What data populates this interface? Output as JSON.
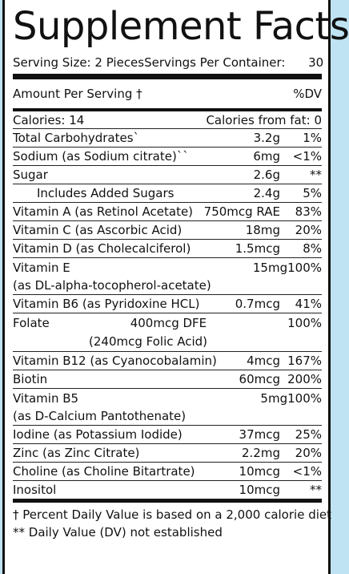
{
  "title": "Supplement Facts",
  "serving": {
    "size_label": "Serving Size:",
    "size_value": "2 Pieces",
    "per_container_label": "Servings Per Container:",
    "per_container_value": "30"
  },
  "header": {
    "amount": "Amount Per Serving †",
    "dv": "%DV"
  },
  "calories": {
    "label": "Calories: 14",
    "fat": "Calories from fat: 0"
  },
  "nutrients": [
    {
      "name": "Total Carbohydrates`",
      "amount": "3.2g",
      "dv": "1%"
    },
    {
      "name": "Sodium (as Sodium citrate)``",
      "amount": "6mg",
      "dv": "<1%"
    },
    {
      "name": "Sugar",
      "amount": "2.6g",
      "dv": "**"
    },
    {
      "name": "Includes Added Sugars",
      "amount": "2.4g",
      "dv": "5%"
    },
    {
      "name": "Vitamin A (as Retinol Acetate)",
      "amount": "750mcg RAE",
      "dv": "83%"
    },
    {
      "name": "Vitamin C (as Ascorbic Acid)",
      "amount": "18mg",
      "dv": "20%"
    },
    {
      "name": "Vitamin D (as Cholecalciferol)",
      "amount": "1.5mcg",
      "dv": "8%"
    },
    {
      "name": "Vitamin E",
      "sub": "(as DL-alpha-tocopherol-acetate)",
      "amount": "15mg",
      "dv": "100%"
    },
    {
      "name": "Vitamin B6 (as Pyridoxine HCL)",
      "amount": "0.7mcg",
      "dv": "41%"
    },
    {
      "name": "Folate",
      "amount": "400mcg DFE",
      "sub": "(240mcg Folic Acid)",
      "dv": "100%"
    },
    {
      "name": "Vitamin B12 (as Cyanocobalamin)",
      "amount": "4mcg",
      "dv": "167%"
    },
    {
      "name": "Biotin",
      "amount": "60mcg",
      "dv": "200%"
    },
    {
      "name": "Vitamin B5",
      "sub": "(as D-Calcium Pantothenate)",
      "amount": "5mg",
      "dv": "100%"
    },
    {
      "name": "Iodine (as Potassium Iodide)",
      "amount": "37mcg",
      "dv": "25%"
    },
    {
      "name": "Zinc (as Zinc Citrate)",
      "amount": "2.2mg",
      "dv": "20%"
    },
    {
      "name": "Choline (as Choline Bitartrate)",
      "amount": "10mcg",
      "dv": "<1%"
    },
    {
      "name": "Inositol",
      "amount": "10mcg",
      "dv": "**"
    }
  ],
  "footnotes": [
    "† Percent Daily Value is based on a 2,000 calorie diet",
    "** Daily Value (DV) not established"
  ]
}
